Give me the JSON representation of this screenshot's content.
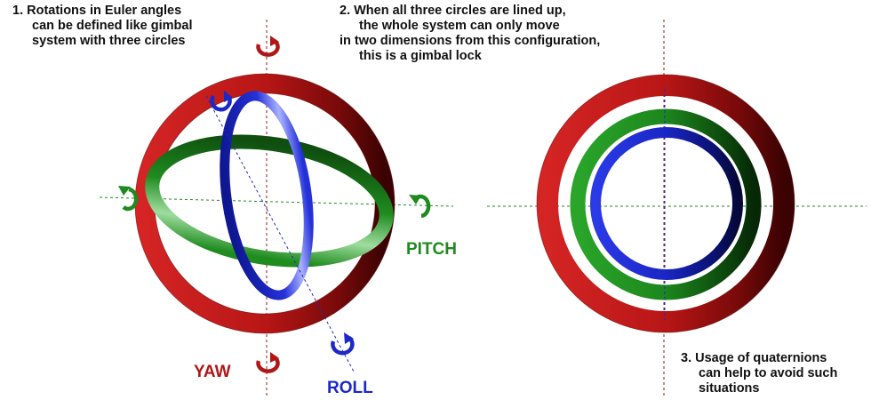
{
  "notes": {
    "note1": [
      "1. Rotations in Euler angles",
      "can be defined like gimbal",
      "system with three circles"
    ],
    "note2": [
      "2. When all three circles are lined up,",
      "the whole system can only move",
      "in two dimensions from this configuration,",
      "this is a gimbal lock"
    ],
    "note3": [
      "3. Usage of quaternions",
      "can help to avoid such",
      "situations"
    ]
  },
  "labels": {
    "yaw": "YAW",
    "pitch": "PITCH",
    "roll": "ROLL"
  },
  "colors": {
    "yaw": "#b01818",
    "pitch": "#1f8a1f",
    "roll": "#1c28c8",
    "text": "#111111"
  },
  "icons": {
    "yaw": "rotate-arrow-icon",
    "pitch": "rotate-arrow-icon",
    "roll": "rotate-arrow-icon"
  }
}
